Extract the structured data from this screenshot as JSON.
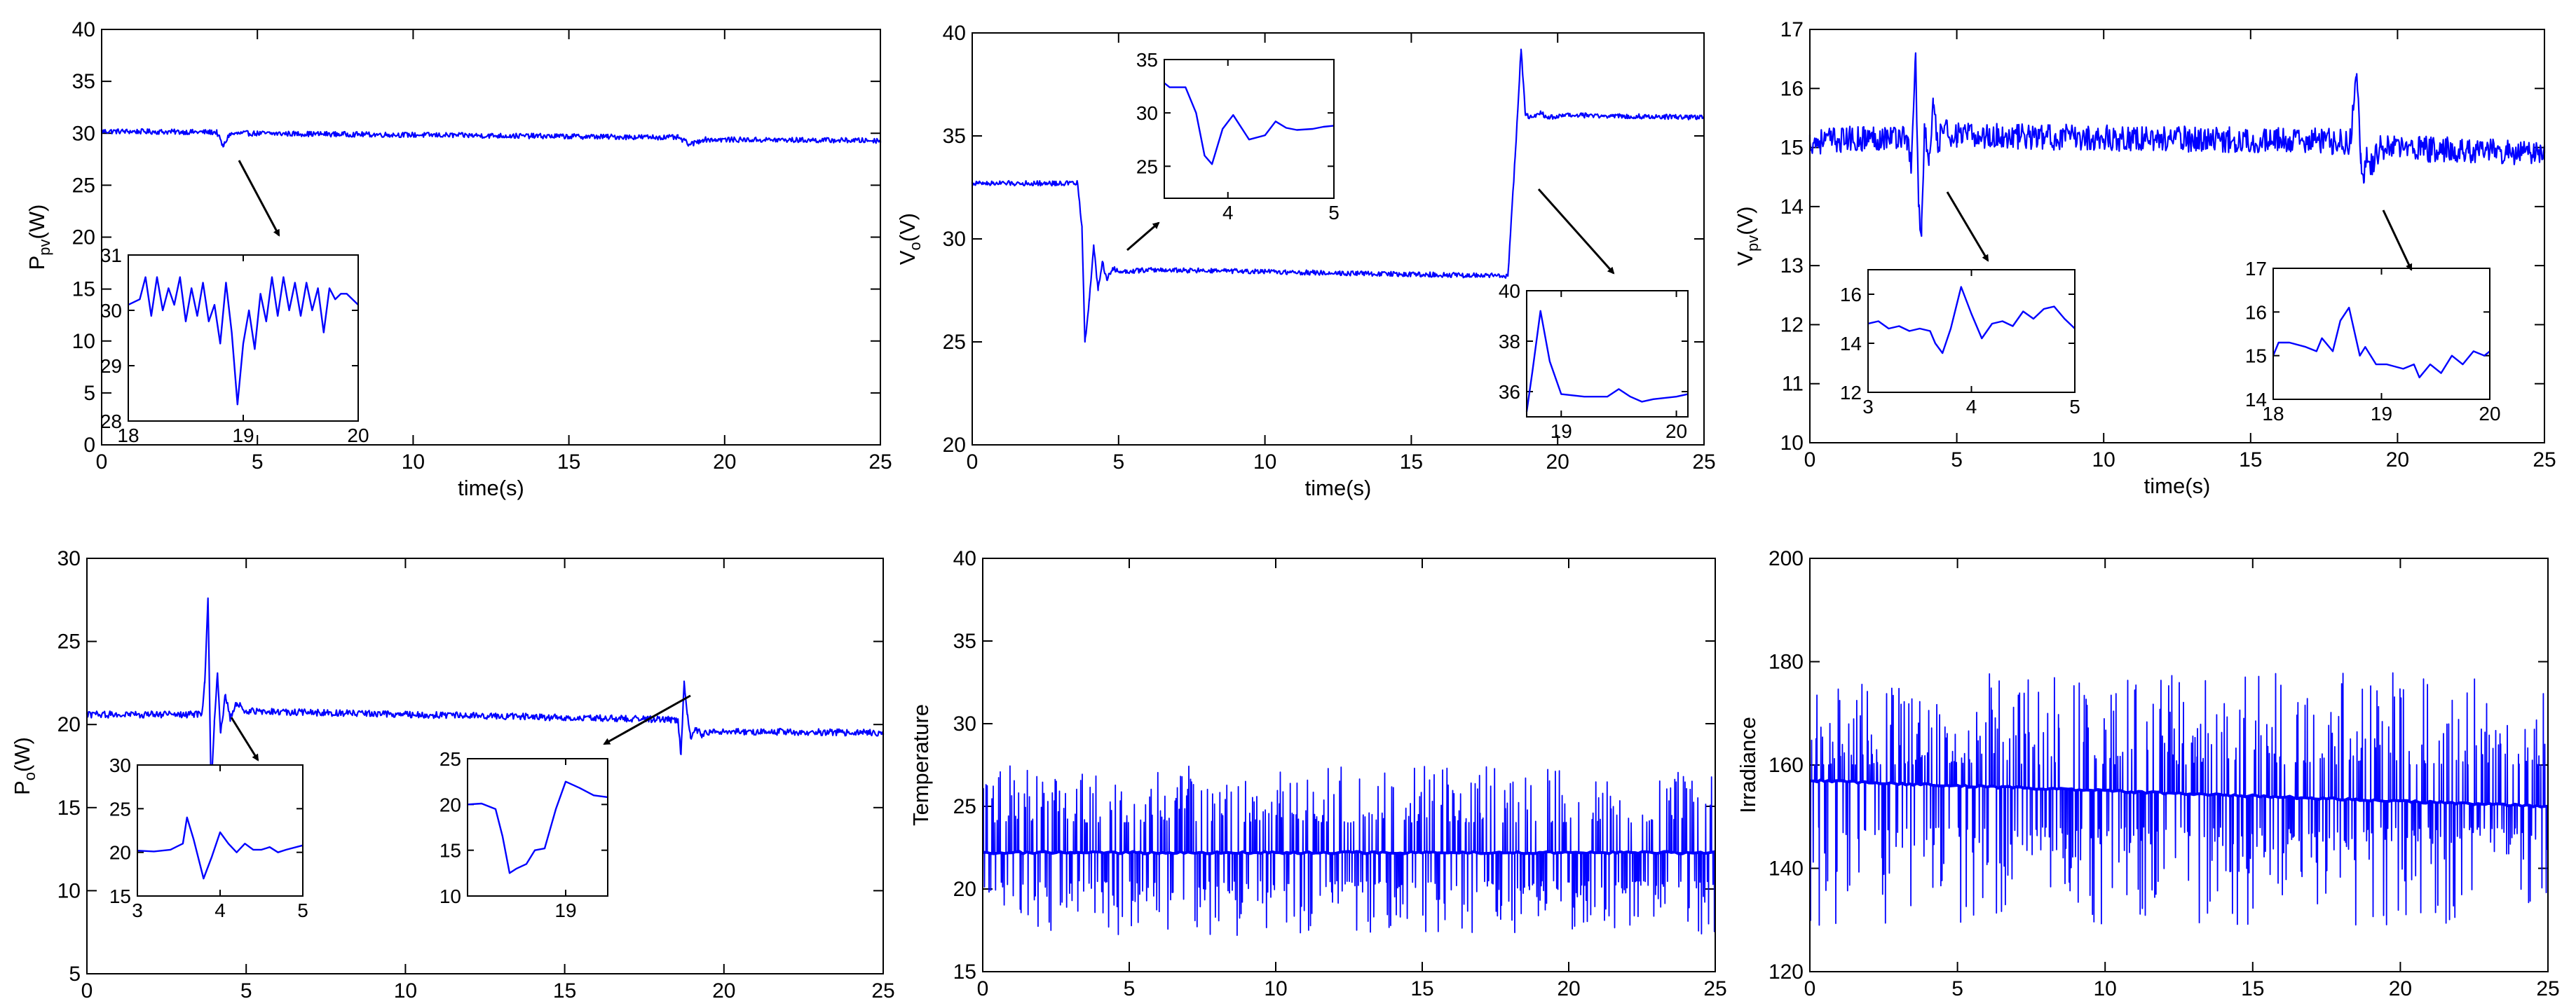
{
  "chart_data": [
    {
      "type": "line",
      "panel": "top-left",
      "xlabel": "time(s)",
      "ylabel": {
        "main": "P",
        "sub": "pv",
        "unit": "(W)"
      },
      "xlim": [
        0,
        25
      ],
      "ylim": [
        0,
        40
      ],
      "xticks": [
        0,
        5,
        10,
        15,
        20,
        25
      ],
      "yticks": [
        0,
        5,
        10,
        15,
        20,
        25,
        30,
        35,
        40
      ],
      "color": "#0000ff",
      "noise": 0.25,
      "series": [
        {
          "x": [
            0,
            3.7,
            3.9,
            4.1,
            4.5,
            18.5,
            18.9,
            19.3,
            25
          ],
          "y": [
            30.2,
            30.1,
            28.7,
            29.9,
            30.0,
            29.6,
            28.9,
            29.4,
            29.3
          ]
        }
      ],
      "insets": [
        {
          "xlim": [
            18,
            20
          ],
          "ylim": [
            28,
            31
          ],
          "xticks": [
            18,
            19,
            20
          ],
          "yticks": [
            28,
            29,
            30,
            31
          ],
          "series": [
            {
              "x": [
                18,
                18.1,
                18.15,
                18.2,
                18.25,
                18.3,
                18.35,
                18.4,
                18.45,
                18.5,
                18.55,
                18.6,
                18.65,
                18.7,
                18.75,
                18.8,
                18.85,
                18.9,
                18.95,
                19.0,
                19.05,
                19.1,
                19.15,
                19.2,
                19.25,
                19.3,
                19.35,
                19.4,
                19.45,
                19.5,
                19.55,
                19.6,
                19.65,
                19.7,
                19.75,
                19.8,
                19.85,
                19.9,
                20
              ],
              "y": [
                30.1,
                30.2,
                30.6,
                29.9,
                30.6,
                30.0,
                30.4,
                30.1,
                30.6,
                29.8,
                30.4,
                29.9,
                30.5,
                29.8,
                30.1,
                29.4,
                30.5,
                29.6,
                28.3,
                29.4,
                30.0,
                29.3,
                30.3,
                29.8,
                30.6,
                29.9,
                30.6,
                30.0,
                30.5,
                29.9,
                30.5,
                30.0,
                30.4,
                29.6,
                30.4,
                30.2,
                30.3,
                30.3,
                30.1
              ]
            }
          ]
        }
      ]
    },
    {
      "type": "line",
      "panel": "top-middle",
      "xlabel": "time(s)",
      "ylabel": {
        "main": "V",
        "sub": "o",
        "unit": "(V)"
      },
      "xlim": [
        0,
        25
      ],
      "ylim": [
        20,
        40
      ],
      "xticks": [
        0,
        5,
        10,
        15,
        20,
        25
      ],
      "yticks": [
        20,
        25,
        30,
        35,
        40
      ],
      "color": "#0000ff",
      "noise": 0.12,
      "series": [
        {
          "x": [
            0,
            3.6,
            3.75,
            3.85,
            4.0,
            4.15,
            4.3,
            4.45,
            4.6,
            4.8,
            5.0,
            6.0,
            18.3,
            18.55,
            18.75,
            18.9,
            19.1,
            19.4,
            19.7,
            20.5,
            25
          ],
          "y": [
            32.7,
            32.7,
            30.5,
            25.0,
            27.0,
            29.7,
            27.5,
            28.9,
            28.0,
            28.6,
            28.4,
            28.5,
            28.2,
            34.0,
            39.2,
            36.0,
            35.9,
            36.1,
            35.9,
            36.0,
            35.9
          ]
        }
      ],
      "insets": [
        {
          "xlim": [
            3.4,
            5
          ],
          "ylim": [
            22,
            35
          ],
          "xticks": [
            4,
            5
          ],
          "yticks": [
            25,
            30,
            35
          ],
          "series": [
            {
              "x": [
                3.4,
                3.45,
                3.6,
                3.7,
                3.78,
                3.85,
                3.95,
                4.05,
                4.2,
                4.35,
                4.45,
                4.55,
                4.65,
                4.8,
                4.9,
                5.0
              ],
              "y": [
                32.8,
                32.4,
                32.4,
                30.0,
                26.0,
                25.2,
                28.5,
                29.8,
                27.5,
                27.9,
                29.2,
                28.6,
                28.4,
                28.5,
                28.7,
                28.8
              ]
            }
          ]
        },
        {
          "xlim": [
            18.7,
            20.1
          ],
          "ylim": [
            35,
            40
          ],
          "xticks": [
            19,
            20
          ],
          "yticks": [
            36,
            38,
            40
          ],
          "series": [
            {
              "x": [
                18.7,
                18.75,
                18.82,
                18.9,
                19.0,
                19.2,
                19.4,
                19.5,
                19.6,
                19.7,
                19.8,
                20.0,
                20.1
              ],
              "y": [
                35.2,
                36.8,
                39.2,
                37.2,
                35.9,
                35.8,
                35.8,
                36.1,
                35.8,
                35.6,
                35.7,
                35.8,
                35.9
              ]
            }
          ]
        }
      ]
    },
    {
      "type": "line",
      "panel": "top-right",
      "xlabel": "time(s)",
      "ylabel": {
        "main": "V",
        "sub": "pv",
        "unit": "(V)"
      },
      "xlim": [
        0,
        25
      ],
      "ylim": [
        10,
        17
      ],
      "xticks": [
        0,
        5,
        10,
        15,
        20,
        25
      ],
      "yticks": [
        10,
        11,
        12,
        13,
        14,
        15,
        16,
        17
      ],
      "color": "#0000ff",
      "noise": 0.22,
      "series": [
        {
          "x": [
            0,
            3.3,
            3.45,
            3.6,
            3.7,
            3.8,
            3.9,
            4.05,
            4.2,
            4.35,
            4.5,
            5.0,
            18.4,
            18.6,
            18.75,
            18.85,
            18.95,
            19.1,
            19.4,
            25
          ],
          "y": [
            15.1,
            15.2,
            14.6,
            16.6,
            14.0,
            13.5,
            15.4,
            14.7,
            15.7,
            15.0,
            15.3,
            15.2,
            15.1,
            16.2,
            14.9,
            14.4,
            15.0,
            14.7,
            15.0,
            14.9
          ]
        }
      ],
      "insets": [
        {
          "xlim": [
            3,
            5
          ],
          "ylim": [
            12,
            17
          ],
          "xticks": [
            3,
            4,
            5
          ],
          "yticks": [
            12,
            14,
            16
          ],
          "series": [
            {
              "x": [
                3.0,
                3.1,
                3.2,
                3.3,
                3.4,
                3.5,
                3.6,
                3.65,
                3.72,
                3.8,
                3.9,
                4.0,
                4.1,
                4.2,
                4.3,
                4.4,
                4.5,
                4.6,
                4.7,
                4.8,
                4.9,
                5.0
              ],
              "y": [
                14.8,
                14.9,
                14.6,
                14.7,
                14.5,
                14.6,
                14.5,
                14.0,
                13.6,
                14.6,
                16.3,
                15.2,
                14.2,
                14.8,
                14.9,
                14.7,
                15.3,
                15.0,
                15.4,
                15.5,
                15.0,
                14.6
              ]
            }
          ]
        },
        {
          "xlim": [
            18,
            20
          ],
          "ylim": [
            14,
            17
          ],
          "xticks": [
            18,
            19,
            20
          ],
          "yticks": [
            14,
            15,
            16,
            17
          ],
          "series": [
            {
              "x": [
                18.0,
                18.05,
                18.15,
                18.3,
                18.4,
                18.45,
                18.55,
                18.62,
                18.7,
                18.8,
                18.85,
                18.95,
                19.05,
                19.2,
                19.3,
                19.35,
                19.45,
                19.55,
                19.65,
                19.75,
                19.85,
                19.95,
                20.0
              ],
              "y": [
                15.0,
                15.3,
                15.3,
                15.2,
                15.1,
                15.4,
                15.1,
                15.8,
                16.1,
                15.0,
                15.2,
                14.8,
                14.8,
                14.7,
                14.8,
                14.5,
                14.8,
                14.6,
                15.0,
                14.8,
                15.1,
                15.0,
                15.1
              ]
            }
          ]
        }
      ]
    },
    {
      "type": "line",
      "panel": "bottom-left",
      "xlabel": "time(s)",
      "ylabel": {
        "main": "P",
        "sub": "o",
        "unit": "(W)"
      },
      "xlim": [
        0,
        25
      ],
      "ylim": [
        5,
        30
      ],
      "xticks": [
        0,
        5,
        10,
        15,
        20,
        25
      ],
      "yticks": [
        5,
        10,
        15,
        20,
        25,
        30
      ],
      "color": "#0000ff",
      "noise": 0.2,
      "series": [
        {
          "x": [
            0,
            3.6,
            3.7,
            3.8,
            3.9,
            4.0,
            4.1,
            4.2,
            4.35,
            4.5,
            4.7,
            5.0,
            18.3,
            18.55,
            18.65,
            18.75,
            18.85,
            18.95,
            19.1,
            19.3,
            19.6,
            25
          ],
          "y": [
            20.6,
            20.6,
            22.5,
            27.6,
            16.0,
            20.2,
            23.1,
            19.5,
            21.8,
            20.4,
            21.3,
            20.8,
            20.3,
            20.3,
            18.2,
            22.6,
            20.6,
            19.2,
            19.8,
            19.4,
            19.6,
            19.5
          ]
        }
      ],
      "insets": [
        {
          "xlim": [
            3,
            5
          ],
          "ylim": [
            15,
            30
          ],
          "xticks": [
            3,
            4,
            5
          ],
          "yticks": [
            15,
            20,
            25,
            30
          ],
          "series": [
            {
              "x": [
                3.0,
                3.2,
                3.4,
                3.55,
                3.6,
                3.68,
                3.8,
                3.9,
                4.0,
                4.1,
                4.2,
                4.3,
                4.4,
                4.5,
                4.6,
                4.7,
                4.8,
                5.0
              ],
              "y": [
                20.2,
                20.1,
                20.3,
                21.0,
                24.0,
                21.5,
                17.0,
                19.5,
                22.3,
                21.0,
                20.0,
                21.0,
                20.3,
                20.3,
                20.6,
                20.0,
                20.3,
                20.8
              ]
            }
          ]
        },
        {
          "xlim": [
            18.3,
            19.3
          ],
          "ylim": [
            10,
            25
          ],
          "xticks": [
            19
          ],
          "yticks": [
            10,
            15,
            20,
            25
          ],
          "series": [
            {
              "x": [
                18.3,
                18.4,
                18.5,
                18.55,
                18.6,
                18.65,
                18.72,
                18.78,
                18.85,
                18.93,
                19.0,
                19.1,
                19.2,
                19.3
              ],
              "y": [
                20.0,
                20.1,
                19.5,
                16.5,
                12.5,
                13.0,
                13.5,
                15.0,
                15.2,
                19.5,
                22.5,
                21.8,
                21.0,
                20.8
              ]
            }
          ]
        }
      ]
    },
    {
      "type": "line",
      "panel": "bottom-middle",
      "xlabel": "time(s)",
      "ylabel": {
        "main": "Temperature"
      },
      "xlim": [
        0,
        25
      ],
      "ylim": [
        15,
        40
      ],
      "xticks": [
        0,
        5,
        10,
        15,
        20,
        25
      ],
      "yticks": [
        15,
        20,
        25,
        30,
        35,
        40
      ],
      "color": "#0000ff",
      "baseline": 22.2,
      "spikes": {
        "count": 520,
        "up_min": 24,
        "up_max": 27.5,
        "down_min": 20.5,
        "down_max": 17.2
      }
    },
    {
      "type": "line",
      "panel": "bottom-right",
      "xlabel": "time(s)",
      "ylabel": {
        "main": "Irradiance"
      },
      "xlim": [
        0,
        25
      ],
      "ylim": [
        120,
        200
      ],
      "xticks": [
        0,
        5,
        10,
        15,
        20,
        25
      ],
      "yticks": [
        120,
        140,
        160,
        180,
        200
      ],
      "color": "#0000ff",
      "baseline": [
        157,
        152
      ],
      "spikes": {
        "count": 560,
        "up_min": 160,
        "up_max": 178,
        "down_min": 148,
        "down_max": 129
      }
    }
  ]
}
